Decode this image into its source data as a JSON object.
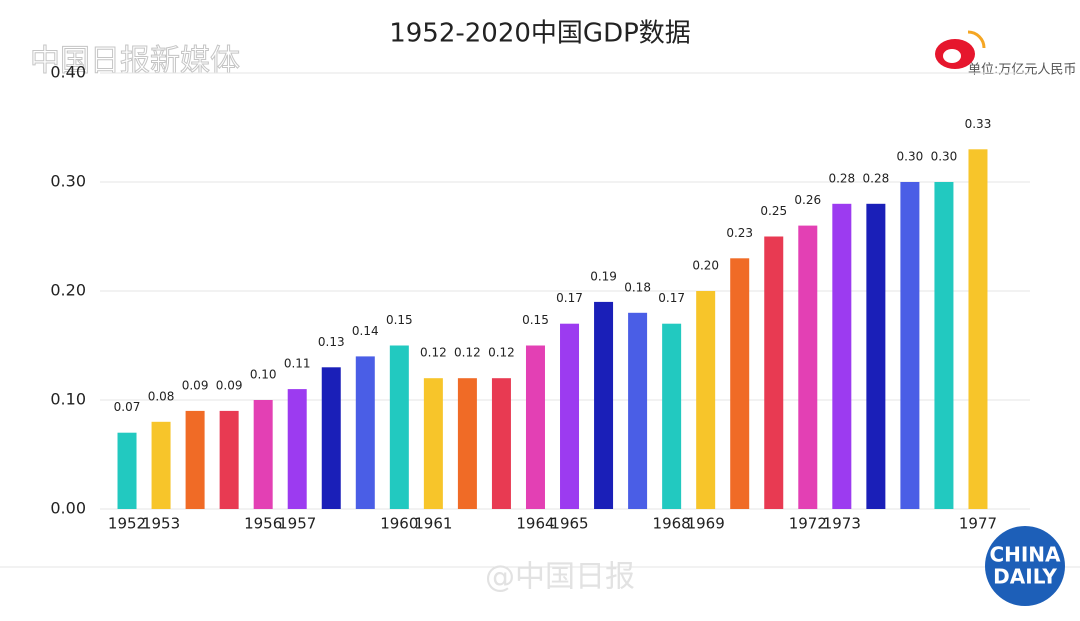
{
  "chart_data": {
    "type": "bar",
    "title": "1952-2020中国GDP数据",
    "annotations": [
      "中国日报新媒体",
      "单位:万亿元人民币",
      "@中国日报",
      "CHINA",
      "DAILY"
    ],
    "categories": [
      "1952",
      "1953",
      null,
      null,
      "1956",
      "1957",
      null,
      null,
      "1960",
      "1961",
      null,
      null,
      "1964",
      "1965",
      null,
      null,
      "1968",
      "1969",
      null,
      null,
      "1972",
      "1973",
      null,
      null,
      null,
      "1977"
    ],
    "values": [
      0.07,
      0.08,
      0.09,
      0.09,
      0.1,
      0.11,
      0.13,
      0.14,
      0.15,
      0.12,
      0.12,
      0.12,
      0.15,
      0.17,
      0.19,
      0.18,
      0.17,
      0.2,
      0.23,
      0.25,
      0.26,
      0.28,
      0.28,
      0.3,
      0.3,
      0.33
    ],
    "value_labels": [
      "0.07",
      "0.08",
      "0.09",
      "0.09",
      "0.10",
      "0.11",
      "0.13",
      "0.14",
      "0.15",
      "0.12",
      "0.12",
      "0.12",
      "0.15",
      "0.17",
      "0.19",
      "0.18",
      "0.17",
      "0.20",
      "0.23",
      "0.25",
      "0.26",
      "0.28",
      "0.28",
      "0.30",
      "0.30",
      "0.33"
    ],
    "colors": [
      "#22c9c0",
      "#f7c52a",
      "#f06b26",
      "#e83a52",
      "#e340b4",
      "#9c3bf0",
      "#1a1fb8",
      "#4a5ee6",
      "#22c9c0",
      "#f7c52a",
      "#f06b26",
      "#e83a52",
      "#e340b4",
      "#9c3bf0",
      "#1a1fb8",
      "#4a5ee6",
      "#22c9c0",
      "#f7c52a",
      "#f06b26",
      "#e83a52",
      "#e340b4",
      "#9c3bf0",
      "#1a1fb8",
      "#4a5ee6",
      "#22c9c0",
      "#f7c52a"
    ],
    "ylim": [
      0,
      0.4
    ],
    "yticks": [
      {
        "value": 0,
        "label": "0.00"
      },
      {
        "value": 0.1,
        "label": "0.10"
      },
      {
        "value": 0.2,
        "label": "0.20"
      },
      {
        "value": 0.3,
        "label": "0.30"
      },
      {
        "value": 0.4,
        "label": "0.40"
      }
    ],
    "grid": true
  }
}
